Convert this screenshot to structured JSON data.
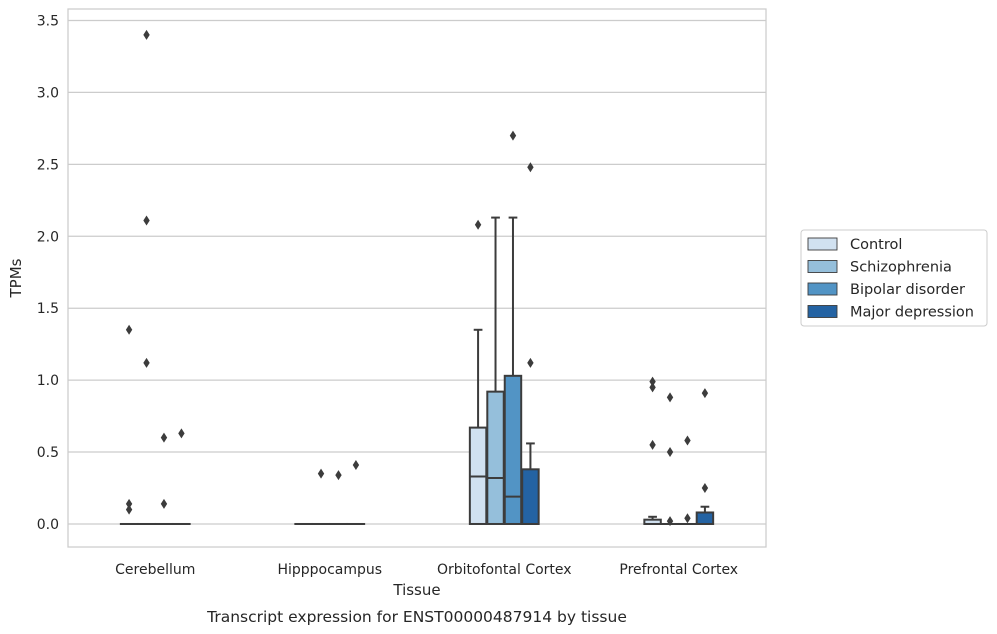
{
  "chart_data": {
    "type": "boxplot",
    "xlabel": "Tissue",
    "ylabel": "TPMs",
    "caption": "Transcript expression for ENST00000487914 by tissue",
    "ylim": [
      -0.16,
      3.58
    ],
    "yticks": [
      0.0,
      0.5,
      1.0,
      1.5,
      2.0,
      2.5,
      3.0,
      3.5
    ],
    "ytick_labels": [
      "0.0",
      "0.5",
      "1.0",
      "1.5",
      "2.0",
      "2.5",
      "3.0",
      "3.5"
    ],
    "grid": "horizontal",
    "legend_position": "right",
    "categories": [
      "Cerebellum",
      "Hipppocampus",
      "Orbitofontal Cortex",
      "Prefrontal Cortex"
    ],
    "series": [
      {
        "name": "Control",
        "color": "#d1e1f0"
      },
      {
        "name": "Schizophrenia",
        "color": "#95bfdb"
      },
      {
        "name": "Bipolar disorder",
        "color": "#5294c5"
      },
      {
        "name": "Major depression",
        "color": "#2463a3"
      }
    ],
    "boxes": [
      [
        {
          "q1": 0,
          "med": 0,
          "q3": 0,
          "wlo": 0,
          "whi": 0,
          "outliers": [
            0.1,
            0.14,
            1.35
          ]
        },
        {
          "q1": 0,
          "med": 0,
          "q3": 0,
          "wlo": 0,
          "whi": 0,
          "outliers": [
            1.12,
            2.11,
            3.4
          ]
        },
        {
          "q1": 0,
          "med": 0,
          "q3": 0,
          "wlo": 0,
          "whi": 0,
          "outliers": [
            0.14,
            0.6
          ]
        },
        {
          "q1": 0,
          "med": 0,
          "q3": 0,
          "wlo": 0,
          "whi": 0,
          "outliers": [
            0.63
          ]
        }
      ],
      [
        {
          "q1": 0,
          "med": 0,
          "q3": 0,
          "wlo": 0,
          "whi": 0,
          "outliers": []
        },
        {
          "q1": 0,
          "med": 0,
          "q3": 0,
          "wlo": 0,
          "whi": 0,
          "outliers": [
            0.35
          ]
        },
        {
          "q1": 0,
          "med": 0,
          "q3": 0,
          "wlo": 0,
          "whi": 0,
          "outliers": [
            0.34
          ]
        },
        {
          "q1": 0,
          "med": 0,
          "q3": 0,
          "wlo": 0,
          "whi": 0,
          "outliers": [
            0.41
          ]
        }
      ],
      [
        {
          "q1": 0,
          "med": 0.33,
          "q3": 0.67,
          "wlo": 0,
          "whi": 1.35,
          "outliers": [
            2.08
          ]
        },
        {
          "q1": 0,
          "med": 0.32,
          "q3": 0.92,
          "wlo": 0,
          "whi": 2.13,
          "outliers": []
        },
        {
          "q1": 0,
          "med": 0.19,
          "q3": 1.03,
          "wlo": 0,
          "whi": 2.13,
          "outliers": [
            2.7
          ]
        },
        {
          "q1": 0,
          "med": 0,
          "q3": 0.38,
          "wlo": 0,
          "whi": 0.56,
          "outliers": [
            1.12,
            2.48
          ]
        }
      ],
      [
        {
          "q1": 0,
          "med": 0,
          "q3": 0.03,
          "wlo": 0,
          "whi": 0.05,
          "outliers": [
            0.55,
            0.95,
            0.99
          ]
        },
        {
          "q1": 0,
          "med": 0,
          "q3": 0,
          "wlo": 0,
          "whi": 0,
          "outliers": [
            0.02,
            0.5,
            0.88
          ]
        },
        {
          "q1": 0,
          "med": 0,
          "q3": 0,
          "wlo": 0,
          "whi": 0,
          "outliers": [
            0.04,
            0.58
          ]
        },
        {
          "q1": 0,
          "med": 0,
          "q3": 0.08,
          "wlo": 0,
          "whi": 0.12,
          "outliers": [
            0.25,
            0.91
          ]
        }
      ]
    ]
  }
}
